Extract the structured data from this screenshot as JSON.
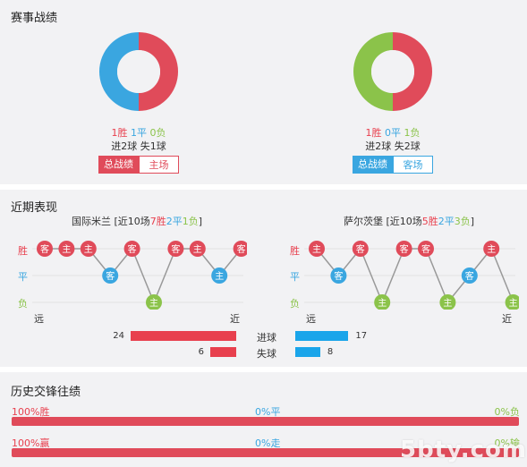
{
  "sections": {
    "record_title": "赛事战绩",
    "recent_title": "近期表现",
    "history_title": "历史交锋往绩"
  },
  "home": {
    "summary": {
      "win": "1胜",
      "draw": "1平",
      "loss": "0负"
    },
    "goals": "进2球 失1球",
    "tab_total": "总战绩",
    "tab_venue": "主场",
    "donut": {
      "win_fraction": 0.5,
      "draw_fraction": 0.5,
      "loss_fraction": 0
    }
  },
  "away": {
    "summary": {
      "win": "1胜",
      "draw": "0平",
      "loss": "1负"
    },
    "goals": "进2球 失2球",
    "tab_total": "总战绩",
    "tab_venue": "客场",
    "donut": {
      "win_fraction": 0.5,
      "draw_fraction": 0,
      "loss_fraction": 0.5
    }
  },
  "recent": {
    "home_header": {
      "team": "国际米兰",
      "prefix": " [近10场",
      "w": "7胜",
      "d": "2平",
      "l": "1负",
      "suffix": "]"
    },
    "away_header": {
      "team": "萨尔茨堡",
      "prefix": " [近10场",
      "w": "5胜",
      "d": "2平",
      "l": "3负",
      "suffix": "]"
    },
    "row_labels": {
      "win": "胜",
      "draw": "平",
      "loss": "负"
    },
    "far_label": "远",
    "near_label": "近",
    "home_matches": [
      {
        "result": "win",
        "venue": "客"
      },
      {
        "result": "win",
        "venue": "主"
      },
      {
        "result": "win",
        "venue": "主"
      },
      {
        "result": "draw",
        "venue": "客"
      },
      {
        "result": "win",
        "venue": "客"
      },
      {
        "result": "loss",
        "venue": "主"
      },
      {
        "result": "win",
        "venue": "客"
      },
      {
        "result": "win",
        "venue": "主"
      },
      {
        "result": "draw",
        "venue": "主"
      },
      {
        "result": "win",
        "venue": "客"
      }
    ],
    "away_matches": [
      {
        "result": "win",
        "venue": "主"
      },
      {
        "result": "draw",
        "venue": "客"
      },
      {
        "result": "win",
        "venue": "客"
      },
      {
        "result": "loss",
        "venue": "主"
      },
      {
        "result": "win",
        "venue": "客"
      },
      {
        "result": "win",
        "venue": "客"
      },
      {
        "result": "loss",
        "venue": "主"
      },
      {
        "result": "draw",
        "venue": "客"
      },
      {
        "result": "win",
        "venue": "主"
      },
      {
        "result": "loss",
        "venue": "主"
      }
    ],
    "goals_for_label": "进球",
    "goals_against_label": "失球",
    "home_goals_for": 24,
    "home_goals_against": 6,
    "away_goals_for": 17,
    "away_goals_against": 8
  },
  "history": {
    "row1": {
      "left": "100%胜",
      "mid": "0%平",
      "right": "0%负"
    },
    "row2": {
      "left": "100%赢",
      "mid": "0%走",
      "right": "0%输"
    },
    "watermark": "5bty.com"
  },
  "colors": {
    "win": "#e04b5a",
    "draw": "#3aa6e0",
    "loss": "#8bc34a"
  }
}
